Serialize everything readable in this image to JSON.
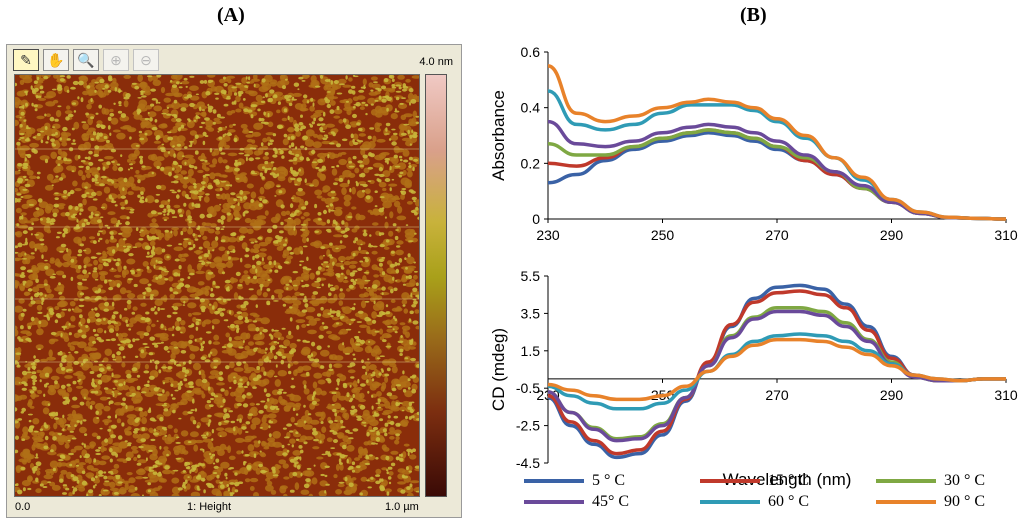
{
  "panel_a": {
    "letter": "(A)",
    "scale_max": "4.0 nm",
    "x_axis_start": "0.0",
    "channel_label": "1: Height",
    "x_axis_end": "1.0 µm",
    "toolbar": [
      {
        "name": "measure-icon",
        "glyph": "✎",
        "active": true,
        "disabled": false
      },
      {
        "name": "pan-hand-icon",
        "glyph": "✋",
        "active": false,
        "disabled": false
      },
      {
        "name": "magnify-icon",
        "glyph": "🔍",
        "active": false,
        "disabled": false
      },
      {
        "name": "zoom-in-icon",
        "glyph": "⊕",
        "active": false,
        "disabled": true
      },
      {
        "name": "zoom-out-icon",
        "glyph": "⊖",
        "active": false,
        "disabled": true
      }
    ],
    "colors": {
      "dark": "#8a2d0a",
      "mid": "#b07016",
      "light": "#c8b63a"
    }
  },
  "panel_b_letter": "(B)",
  "legend": [
    {
      "label": "5 ° C",
      "color": "#3a62a6"
    },
    {
      "label": "15 ° C",
      "color": "#c0392b"
    },
    {
      "label": "30 ° C",
      "color": "#7fa843"
    },
    {
      "label": "45° C",
      "color": "#6a4a9a"
    },
    {
      "label": "60 ° C",
      "color": "#2f9bb5"
    },
    {
      "label": "90 ° C",
      "color": "#e8822a"
    }
  ],
  "chart_data": [
    {
      "type": "line",
      "title": "",
      "xlabel": "",
      "ylabel": "Absorbance",
      "xlim": [
        230,
        310
      ],
      "ylim": [
        0,
        0.6
      ],
      "xticks": [
        "230",
        "250",
        "270",
        "290",
        "310"
      ],
      "yticks": [
        "0",
        "0.2",
        "0.4",
        "0.6"
      ],
      "x": [
        230,
        235,
        240,
        245,
        250,
        255,
        258,
        262,
        266,
        270,
        275,
        280,
        285,
        290,
        295,
        300,
        305,
        310
      ],
      "series": [
        {
          "name": "5 ° C",
          "values": [
            0.13,
            0.16,
            0.21,
            0.25,
            0.28,
            0.3,
            0.31,
            0.3,
            0.28,
            0.25,
            0.21,
            0.16,
            0.11,
            0.06,
            0.02,
            0.005,
            0.002,
            0.0
          ]
        },
        {
          "name": "15 ° C",
          "values": [
            0.2,
            0.19,
            0.22,
            0.26,
            0.29,
            0.31,
            0.32,
            0.31,
            0.29,
            0.26,
            0.21,
            0.16,
            0.11,
            0.06,
            0.02,
            0.005,
            0.002,
            0.0
          ]
        },
        {
          "name": "30 ° C",
          "values": [
            0.27,
            0.23,
            0.23,
            0.26,
            0.29,
            0.31,
            0.32,
            0.31,
            0.29,
            0.26,
            0.22,
            0.17,
            0.11,
            0.06,
            0.02,
            0.005,
            0.002,
            0.0
          ]
        },
        {
          "name": "45° C",
          "values": [
            0.35,
            0.27,
            0.26,
            0.28,
            0.31,
            0.33,
            0.34,
            0.33,
            0.31,
            0.28,
            0.23,
            0.17,
            0.12,
            0.06,
            0.02,
            0.005,
            0.002,
            0.0
          ]
        },
        {
          "name": "60 ° C",
          "values": [
            0.46,
            0.34,
            0.32,
            0.34,
            0.38,
            0.41,
            0.41,
            0.41,
            0.39,
            0.35,
            0.29,
            0.22,
            0.14,
            0.07,
            0.025,
            0.006,
            0.002,
            0.0
          ]
        },
        {
          "name": "90 ° C",
          "values": [
            0.55,
            0.38,
            0.35,
            0.37,
            0.4,
            0.42,
            0.43,
            0.42,
            0.4,
            0.36,
            0.3,
            0.22,
            0.15,
            0.07,
            0.025,
            0.006,
            0.002,
            0.0
          ]
        }
      ]
    },
    {
      "type": "line",
      "title": "",
      "xlabel": "Wavelength (nm)",
      "ylabel": "CD (mdeg)",
      "xlim": [
        230,
        310
      ],
      "ylim": [
        -4.5,
        5.5
      ],
      "xticks": [
        "230",
        "250",
        "270",
        "290",
        "310"
      ],
      "yticks": [
        "5.5",
        "3.5",
        "1.5",
        "-0.5",
        "-2.5",
        "-4.5"
      ],
      "x": [
        230,
        234,
        238,
        242,
        246,
        250,
        254,
        258,
        262,
        266,
        270,
        274,
        278,
        282,
        286,
        290,
        294,
        298,
        302,
        306,
        310
      ],
      "series": [
        {
          "name": "5 ° C",
          "values": [
            -1.0,
            -2.5,
            -3.5,
            -4.2,
            -4.0,
            -3.0,
            -1.2,
            0.8,
            2.8,
            4.3,
            4.9,
            5.0,
            4.8,
            4.0,
            2.8,
            1.2,
            0.2,
            -0.1,
            -0.1,
            0.0,
            0.0
          ]
        },
        {
          "name": "15 ° C",
          "values": [
            -0.9,
            -2.3,
            -3.3,
            -4.0,
            -3.8,
            -2.8,
            -1.1,
            0.9,
            2.9,
            4.1,
            4.6,
            4.7,
            4.5,
            3.8,
            2.6,
            1.1,
            0.2,
            -0.1,
            -0.1,
            0.0,
            0.0
          ]
        },
        {
          "name": "30 ° C",
          "values": [
            -0.7,
            -1.8,
            -2.6,
            -3.2,
            -3.1,
            -2.4,
            -1.0,
            0.7,
            2.3,
            3.3,
            3.8,
            3.8,
            3.6,
            3.0,
            2.1,
            0.9,
            0.1,
            -0.1,
            -0.1,
            0.0,
            0.0
          ]
        },
        {
          "name": "45° C",
          "values": [
            -0.7,
            -1.8,
            -2.7,
            -3.3,
            -3.2,
            -2.5,
            -1.0,
            0.7,
            2.2,
            3.2,
            3.6,
            3.6,
            3.4,
            2.8,
            2.0,
            0.8,
            0.1,
            -0.1,
            -0.1,
            0.0,
            0.0
          ]
        },
        {
          "name": "60 ° C",
          "values": [
            -0.4,
            -0.9,
            -1.3,
            -1.6,
            -1.6,
            -1.3,
            -0.6,
            0.4,
            1.3,
            2.0,
            2.3,
            2.4,
            2.3,
            2.0,
            1.5,
            0.8,
            0.2,
            0.0,
            -0.1,
            0.0,
            0.0
          ]
        },
        {
          "name": "90 ° C",
          "values": [
            -0.3,
            -0.6,
            -0.9,
            -1.1,
            -1.1,
            -0.9,
            -0.4,
            0.4,
            1.2,
            1.8,
            2.1,
            2.1,
            2.0,
            1.7,
            1.3,
            0.7,
            0.2,
            0.0,
            -0.1,
            0.0,
            0.0
          ]
        }
      ]
    }
  ]
}
